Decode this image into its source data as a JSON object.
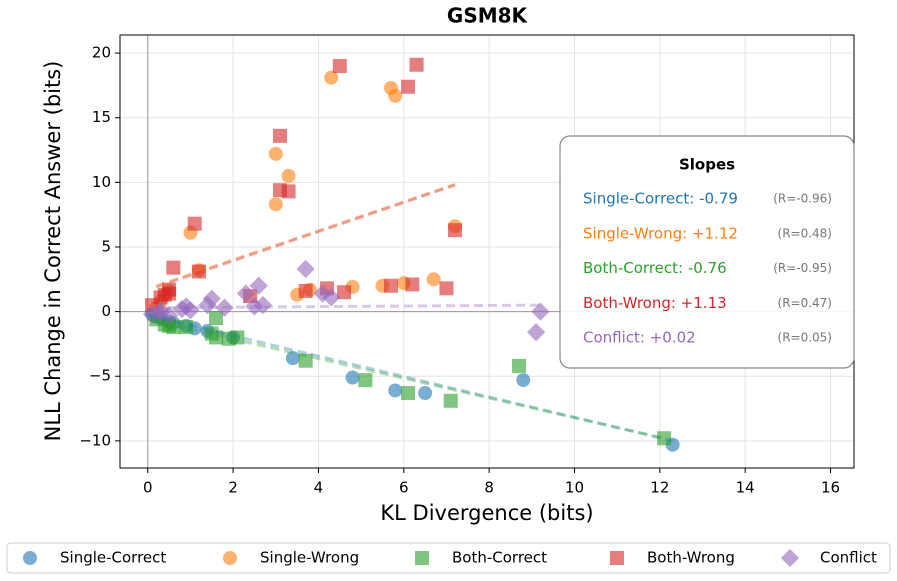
{
  "chart_data": {
    "type": "scatter",
    "title": "GSM8K",
    "x_label": "KL Divergence (bits)",
    "y_label": "NLL Change in Correct Answer (bits)",
    "xlim": [
      -0.65,
      16.55
    ],
    "ylim": [
      -12.1,
      21.4
    ],
    "xticks": [
      0,
      2,
      4,
      6,
      8,
      10,
      12,
      14,
      16
    ],
    "yticks": [
      {
        "value": -10,
        "label": "−10"
      },
      {
        "value": -5,
        "label": "−5"
      },
      0,
      5,
      10,
      15,
      20
    ],
    "grid": true,
    "legend": "bottom",
    "series": [
      {
        "name": "Single-Correct",
        "color": "#1f77b4",
        "marker": "circle",
        "x": [
          0.1,
          0.2,
          0.3,
          0.5,
          0.6,
          0.9,
          1.1,
          1.4,
          2.0,
          3.4,
          4.8,
          5.8,
          6.5,
          8.8,
          12.3
        ],
        "values": [
          -0.2,
          -0.4,
          -0.5,
          -0.8,
          -0.9,
          -1.1,
          -1.3,
          -1.5,
          -2.0,
          -3.6,
          -5.1,
          -6.1,
          -6.3,
          -5.3,
          -10.3
        ],
        "trend": {
          "x": [
            0,
            12.3
          ],
          "y": [
            -0.28,
            -10.0
          ]
        }
      },
      {
        "name": "Single-Wrong",
        "color": "#ff7f0e",
        "marker": "circle",
        "x": [
          0.2,
          0.3,
          0.4,
          0.5,
          1.0,
          1.2,
          3.0,
          3.0,
          3.3,
          3.5,
          3.8,
          4.8,
          4.3,
          5.7,
          5.8,
          5.5,
          6.0,
          6.7,
          7.2
        ],
        "values": [
          0.3,
          0.8,
          1.3,
          1.6,
          6.1,
          3.2,
          8.3,
          12.2,
          10.5,
          1.3,
          1.7,
          1.9,
          18.1,
          17.3,
          16.7,
          2.0,
          2.2,
          2.5,
          6.6
        ],
        "trend": {
          "x": [
            0.2,
            7.2
          ],
          "y": [
            2.0,
            9.84
          ]
        }
      },
      {
        "name": "Both-Correct",
        "color": "#2ca02c",
        "marker": "square",
        "x": [
          0.2,
          0.4,
          0.5,
          0.6,
          0.9,
          1.5,
          1.6,
          1.6,
          1.9,
          2.1,
          3.7,
          5.1,
          6.1,
          7.1,
          8.7,
          12.1
        ],
        "values": [
          -0.6,
          -1.0,
          -1.1,
          -1.2,
          -1.2,
          -1.7,
          -2.0,
          -0.5,
          -2.1,
          -2.0,
          -3.8,
          -5.3,
          -6.3,
          -6.9,
          -4.2,
          -9.8
        ],
        "trend": {
          "x": [
            0,
            12.1
          ],
          "y": [
            -0.6,
            -9.8
          ]
        }
      },
      {
        "name": "Both-Wrong",
        "color": "#d62728",
        "marker": "square",
        "x": [
          0.1,
          0.3,
          0.4,
          0.5,
          0.5,
          0.6,
          1.1,
          1.2,
          2.4,
          3.1,
          3.1,
          3.3,
          3.7,
          4.5,
          4.2,
          4.6,
          5.7,
          6.1,
          6.2,
          6.3,
          7.0,
          7.2
        ],
        "values": [
          0.5,
          1.1,
          1.3,
          1.7,
          1.4,
          3.4,
          6.8,
          3.1,
          1.2,
          9.4,
          13.6,
          9.3,
          1.6,
          19.0,
          1.8,
          1.5,
          2.0,
          17.4,
          2.1,
          19.1,
          1.8,
          6.3
        ],
        "trend": {
          "x": [
            0.2,
            7.2
          ],
          "y": [
            1.9,
            9.8
          ]
        }
      },
      {
        "name": "Conflict",
        "color": "#9467bd",
        "marker": "diamond",
        "x": [
          0.1,
          0.3,
          0.3,
          0.5,
          0.8,
          0.9,
          1.0,
          1.4,
          1.5,
          1.8,
          2.3,
          2.5,
          2.6,
          2.7,
          3.7,
          4.1,
          4.3,
          9.1,
          9.2
        ],
        "values": [
          -0.2,
          -0.1,
          0.1,
          -0.3,
          0.2,
          0.4,
          0.1,
          0.5,
          1.0,
          0.3,
          1.4,
          0.4,
          2.0,
          0.5,
          3.3,
          1.4,
          1.1,
          -1.6,
          0.0
        ],
        "trend": {
          "x": [
            0.1,
            9.2
          ],
          "y": [
            0.3,
            0.5
          ]
        }
      }
    ],
    "slopes": {
      "title": "Slopes",
      "entries": [
        {
          "text": "Single-Correct: -0.79",
          "r": "(R=-0.96)"
        },
        {
          "text": "Single-Wrong: +1.12",
          "r": "(R=0.48)"
        },
        {
          "text": "Both-Correct: -0.76",
          "r": "(R=-0.95)"
        },
        {
          "text": "Both-Wrong: +1.13",
          "r": "(R=0.47)"
        },
        {
          "text": "Conflict: +0.02",
          "r": "(R=0.05)"
        }
      ]
    }
  }
}
